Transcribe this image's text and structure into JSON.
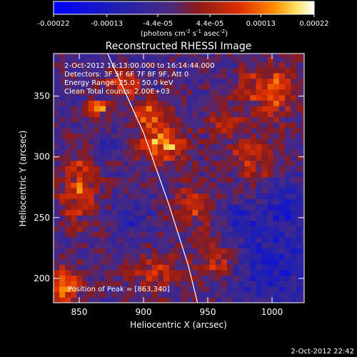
{
  "chart_data": {
    "type": "heatmap",
    "title": "Reconstructed RHESSI Image",
    "xlabel": "Heliocentric X (arcsec)",
    "ylabel": "Heliocentric Y (arcsec)",
    "xlim": [
      830,
      1025
    ],
    "ylim": [
      180,
      385
    ],
    "xticks": [
      850,
      900,
      950,
      1000
    ],
    "yticks": [
      200,
      250,
      300,
      350
    ],
    "colorbar": {
      "range": [
        -0.00022,
        0.00022
      ],
      "tick_labels": [
        "-0.00022",
        "-0.00013",
        "-4.4e-05",
        "4.4e-05",
        "0.00013",
        "0.00022"
      ],
      "tick_values": [
        -0.00022,
        -0.00013,
        -4.4e-05,
        4.4e-05,
        0.00013,
        0.00022
      ],
      "units_prefix": "(photons cm",
      "units_exp1": "-2",
      "units_mid": " s",
      "units_exp2": "-1",
      "units_mid2": " asec",
      "units_exp3": "-2",
      "units_suffix": ")"
    },
    "annotations": [
      "2-Oct-2012 16:13:00.000 to 16:14:44.000",
      "Detectors: 3F 5F 6F 7F 8F 9F, Att 0",
      "Energy Range: 25.0 - 50.0 keV",
      "Clean    Total counts: 2.00E+03"
    ],
    "peak_label": "Position of Peak = [863,340]",
    "peak": [
      863,
      340
    ],
    "limb_curve": [
      [
        872,
        385
      ],
      [
        900,
        320
      ],
      [
        920,
        260
      ],
      [
        935,
        210
      ],
      [
        942,
        180
      ]
    ],
    "hot_regions": [
      {
        "x": 915,
        "y": 310,
        "rx": 18,
        "ry": 14,
        "v": 0.0002
      },
      {
        "x": 905,
        "y": 335,
        "rx": 14,
        "ry": 10,
        "v": 0.00016
      },
      {
        "x": 885,
        "y": 360,
        "rx": 14,
        "ry": 10,
        "v": 0.00013
      },
      {
        "x": 1000,
        "y": 355,
        "rx": 25,
        "ry": 22,
        "v": 0.00015
      },
      {
        "x": 985,
        "y": 300,
        "rx": 20,
        "ry": 18,
        "v": 0.00012
      },
      {
        "x": 940,
        "y": 260,
        "rx": 15,
        "ry": 20,
        "v": 0.00012
      },
      {
        "x": 955,
        "y": 215,
        "rx": 15,
        "ry": 15,
        "v": 0.00012
      },
      {
        "x": 910,
        "y": 205,
        "rx": 20,
        "ry": 15,
        "v": 0.00011
      },
      {
        "x": 850,
        "y": 275,
        "rx": 14,
        "ry": 30,
        "v": 0.00014
      },
      {
        "x": 838,
        "y": 195,
        "rx": 12,
        "ry": 15,
        "v": 0.0002
      },
      {
        "x": 863,
        "y": 340,
        "rx": 8,
        "ry": 6,
        "v": 0.00022
      },
      {
        "x": 960,
        "y": 330,
        "rx": 15,
        "ry": 12,
        "v": 9e-05
      }
    ],
    "cold_regions": [
      {
        "x": 1000,
        "y": 210,
        "rx": 25,
        "ry": 30,
        "v": -0.00012
      },
      {
        "x": 1010,
        "y": 260,
        "rx": 15,
        "ry": 20,
        "v": -0.0001
      },
      {
        "x": 975,
        "y": 250,
        "rx": 15,
        "ry": 15,
        "v": -8e-05
      },
      {
        "x": 890,
        "y": 250,
        "rx": 12,
        "ry": 12,
        "v": -8e-05
      },
      {
        "x": 870,
        "y": 310,
        "rx": 10,
        "ry": 10,
        "v": -7e-05
      }
    ]
  },
  "footer": {
    "date": "2-Oct-2012 22:42"
  }
}
